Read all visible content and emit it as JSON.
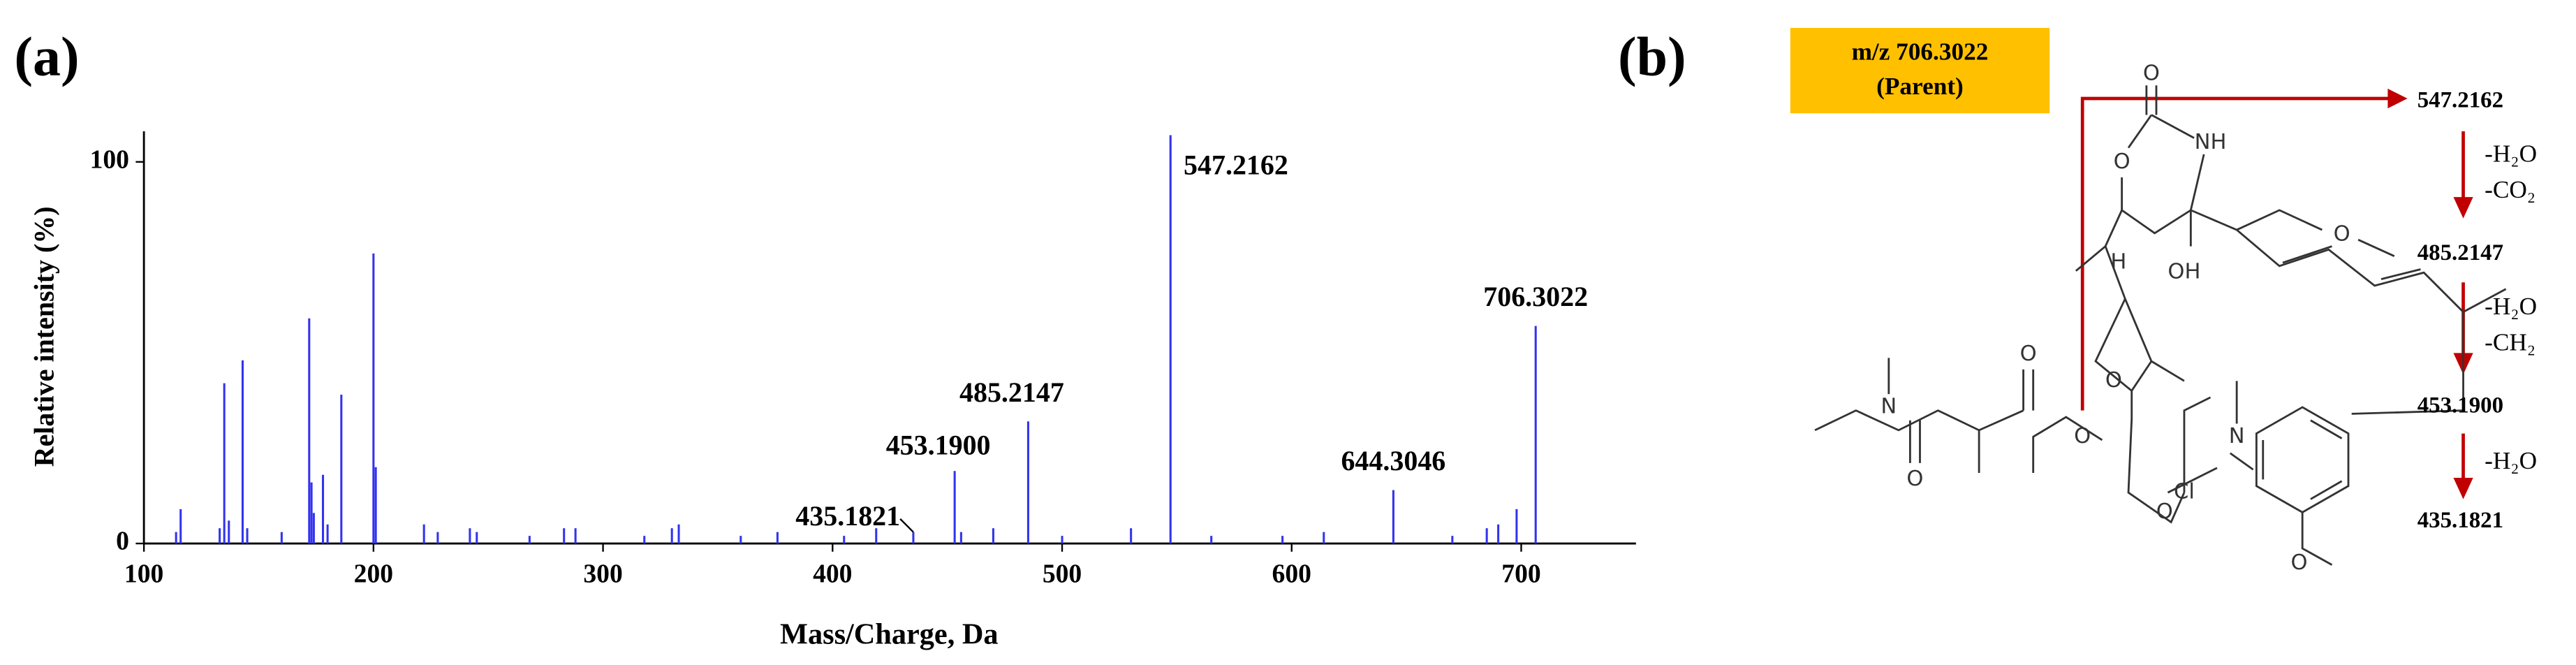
{
  "chart_data": {
    "type": "bar",
    "x_label": "Mass/Charge, Da",
    "y_label": "Relative intensity (%)",
    "x": [
      114,
      116,
      133,
      135,
      137,
      143,
      145,
      160,
      172,
      173,
      174,
      178,
      180,
      186,
      200,
      201,
      222,
      228,
      242,
      245,
      268,
      283,
      288,
      318,
      330,
      333,
      360,
      376,
      405,
      419,
      435.1821,
      453.19,
      456,
      470,
      485.2147,
      500,
      530,
      547.2162,
      565,
      596,
      614,
      644.3046,
      670,
      685,
      690,
      698,
      706.3022
    ],
    "values": [
      3,
      9,
      4,
      42,
      6,
      48,
      4,
      3,
      59,
      16,
      8,
      18,
      5,
      39,
      76,
      20,
      5,
      3,
      4,
      3,
      2,
      4,
      4,
      2,
      4,
      5,
      2,
      3,
      2,
      4,
      3,
      19,
      3,
      4,
      32,
      2,
      4,
      107,
      2,
      2,
      3,
      14,
      2,
      4,
      5,
      9,
      57
    ],
    "color": "#3333ee",
    "xlim": [
      100,
      750
    ],
    "ylim": [
      0,
      108
    ],
    "xticks": [
      100,
      200,
      300,
      400,
      500,
      600,
      700
    ],
    "yticks": [
      0,
      100
    ],
    "grid": false,
    "annotations": [
      {
        "x": 547.2162,
        "text": "547.2162"
      },
      {
        "x": 706.3022,
        "text": "706.3022"
      },
      {
        "x": 485.2147,
        "text": "485.2147"
      },
      {
        "x": 453.19,
        "text": "453.1900"
      },
      {
        "x": 435.1821,
        "text": "435.1821"
      },
      {
        "x": 644.3046,
        "text": "644.3046"
      }
    ]
  },
  "panel_labels": [
    "(a)",
    "(b)"
  ],
  "scheme": {
    "parent": [
      "m/z 706.3022",
      "(Parent)"
    ],
    "fragments": [
      "547.2162",
      "485.2147",
      "453.1900",
      "435.1821"
    ],
    "losses": [
      [
        "-H₂O",
        "-CO₂"
      ],
      [
        "-H₂O",
        "-CH₂"
      ],
      [
        "-H₂O"
      ]
    ],
    "atoms": [
      "O",
      "O",
      "NH",
      "H",
      "OH",
      "O",
      "O",
      "O",
      "N",
      "O",
      "O",
      "N",
      "O",
      "Cl",
      "O"
    ]
  }
}
